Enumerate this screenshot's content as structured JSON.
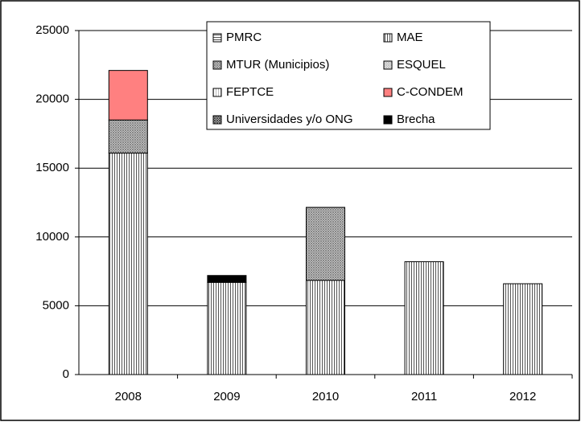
{
  "chart_data": {
    "type": "stacked_bar",
    "categories": [
      "2008",
      "2009",
      "2010",
      "2011",
      "2012"
    ],
    "series": [
      {
        "name": "PMRC",
        "color": "#ffffff",
        "pattern": "horizontal",
        "values": [
          0,
          0,
          0,
          0,
          0
        ]
      },
      {
        "name": "MAE",
        "color": "#ffffff",
        "pattern": "vertical",
        "values": [
          16100,
          6700,
          6850,
          8200,
          6600
        ]
      },
      {
        "name": "MTUR (Municipios)",
        "color": "#808080",
        "pattern": "cross",
        "values": [
          2400,
          0,
          5300,
          0,
          0
        ]
      },
      {
        "name": "ESQUEL",
        "color": "#c0c0c0",
        "pattern": "cross",
        "values": [
          0,
          0,
          0,
          0,
          0
        ]
      },
      {
        "name": "FEPTCE",
        "color": "#ffffff",
        "pattern": "light",
        "values": [
          0,
          0,
          0,
          0,
          0
        ]
      },
      {
        "name": "C-CONDEM",
        "color": "#ff8080",
        "pattern": "solid",
        "values": [
          3600,
          0,
          0,
          0,
          0
        ]
      },
      {
        "name": "Universidades y/o ONG",
        "color": "#404040",
        "pattern": "cross",
        "values": [
          0,
          0,
          0,
          0,
          0
        ]
      },
      {
        "name": "Brecha",
        "color": "#000000",
        "pattern": "solid",
        "values": [
          0,
          500,
          0,
          0,
          0
        ]
      }
    ],
    "ylim": [
      0,
      25000
    ],
    "yticks": [
      0,
      5000,
      10000,
      15000,
      20000,
      25000
    ],
    "grid": true,
    "legend": "top-right"
  }
}
